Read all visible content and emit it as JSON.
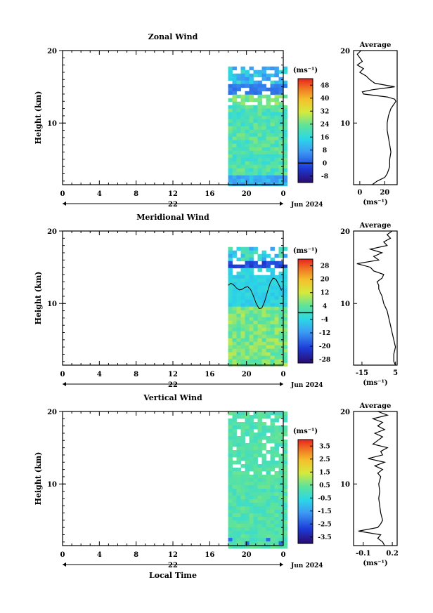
{
  "page": {
    "bottom_xlabel": "Local Time",
    "date_label": "Jun 2024",
    "cbar_unit": "(ms⁻¹)",
    "prof_title": "Average",
    "prof_unit": "(ms⁻¹)",
    "ylabel": "Height (km)"
  },
  "chart_data": [
    {
      "type": "heatmap",
      "title": "Zonal Wind",
      "xlabel": "",
      "ylabel": "Height (km)",
      "x_ticks": [
        "0",
        "4",
        "8",
        "12",
        "16",
        "20",
        "0"
      ],
      "x_range_hours": [
        0,
        24
      ],
      "y_ticks": [
        10,
        20
      ],
      "ylim_km": [
        1.5,
        20
      ],
      "day_label": "22",
      "data_coverage_hours": [
        18,
        24
      ],
      "data_top_km": 17.8,
      "colorbar": {
        "unit": "(ms⁻¹)",
        "ticks": [
          "-8",
          "0",
          "8",
          "16",
          "24",
          "32",
          "40",
          "48"
        ],
        "range": [
          -12,
          52
        ],
        "zero_line": 0
      },
      "profile": {
        "title": "Average",
        "xlabel": "(ms⁻¹)",
        "x_ticks": [
          "0",
          "20"
        ],
        "xlim": [
          -5,
          30
        ],
        "y": [
          1.5,
          2,
          2.5,
          3,
          3.5,
          4,
          5,
          6,
          7,
          8,
          9,
          10,
          11,
          12,
          12.5,
          13,
          13.3,
          13.6,
          14,
          14.3,
          14.6,
          15,
          15.5,
          16,
          16.5,
          17,
          17.5,
          18,
          18.5,
          19,
          19.5,
          20
        ],
        "values": [
          10,
          14,
          20,
          22,
          23,
          24,
          24,
          25,
          24,
          23,
          22,
          22,
          23,
          25,
          27,
          29,
          28,
          22,
          3,
          2,
          10,
          28,
          12,
          8,
          5,
          0,
          3,
          -2,
          2,
          0,
          -2,
          1
        ]
      }
    },
    {
      "type": "heatmap",
      "title": "Meridional Wind",
      "xlabel": "",
      "ylabel": "Height (km)",
      "x_ticks": [
        "0",
        "4",
        "8",
        "12",
        "16",
        "20",
        "0"
      ],
      "x_range_hours": [
        0,
        24
      ],
      "y_ticks": [
        10,
        20
      ],
      "ylim_km": [
        1.5,
        20
      ],
      "day_label": "22",
      "data_coverage_hours": [
        18,
        24
      ],
      "data_top_km": 17.8,
      "colorbar": {
        "unit": "(ms⁻¹)",
        "ticks": [
          "-28",
          "-20",
          "-12",
          "-4",
          "4",
          "12",
          "20",
          "28"
        ],
        "range": [
          -30,
          32
        ],
        "zero_line": 0
      },
      "profile": {
        "title": "Average",
        "xlabel": "(ms⁻¹)",
        "x_ticks": [
          "-15",
          "5"
        ],
        "xlim": [
          -20,
          6
        ],
        "y": [
          1.5,
          2,
          3,
          4,
          5,
          6,
          7,
          8,
          9,
          10,
          11,
          12,
          12.5,
          13,
          13.5,
          14,
          14.5,
          15,
          15.5,
          16,
          16.5,
          17,
          17.5,
          18,
          18.5,
          19,
          19.5,
          20
        ],
        "values": [
          5,
          4,
          4,
          5,
          4,
          3,
          2,
          1,
          0,
          -2,
          -3,
          -5,
          -5,
          -6,
          -3,
          -2,
          -8,
          -10,
          -18,
          -5,
          -8,
          -3,
          -10,
          0,
          -2,
          2,
          0,
          3
        ]
      }
    },
    {
      "type": "heatmap",
      "title": "Vertical Wind",
      "xlabel": "Local Time",
      "ylabel": "Height (km)",
      "x_ticks": [
        "0",
        "4",
        "8",
        "12",
        "16",
        "20",
        "0"
      ],
      "x_range_hours": [
        0,
        24
      ],
      "y_ticks": [
        10,
        20
      ],
      "ylim_km": [
        1.5,
        20
      ],
      "day_label": "22",
      "data_coverage_hours": [
        18,
        24
      ],
      "data_top_km": 20,
      "colorbar": {
        "unit": "(ms⁻¹)",
        "ticks": [
          "-3.5",
          "-2.5",
          "-1.5",
          "-0.5",
          "0.5",
          "1.5",
          "2.5",
          "3.5"
        ],
        "range": [
          -4,
          4
        ]
      },
      "profile": {
        "title": "Average",
        "xlabel": "(ms⁻¹)",
        "x_ticks": [
          "-0.1",
          "0.2"
        ],
        "xlim": [
          -0.2,
          0.25
        ],
        "y": [
          1.5,
          2,
          2.5,
          3,
          3.5,
          4,
          4.5,
          5,
          6,
          7,
          8,
          9,
          10,
          11,
          11.5,
          12,
          12.5,
          13,
          13.5,
          14,
          14.5,
          15,
          15.5,
          16,
          16.5,
          17,
          17.5,
          18,
          18.5,
          19,
          19.5,
          20
        ],
        "values": [
          0.12,
          0.1,
          0.05,
          0.08,
          -0.15,
          0.05,
          0.08,
          0.1,
          0.08,
          0.07,
          0.06,
          0.07,
          0.06,
          0.08,
          0.05,
          0.1,
          0.02,
          0.12,
          -0.05,
          0.1,
          0.08,
          0.15,
          0.0,
          0.05,
          0.1,
          0.02,
          0.12,
          0.05,
          0.1,
          0.0,
          0.15,
          0.05
        ]
      }
    }
  ]
}
